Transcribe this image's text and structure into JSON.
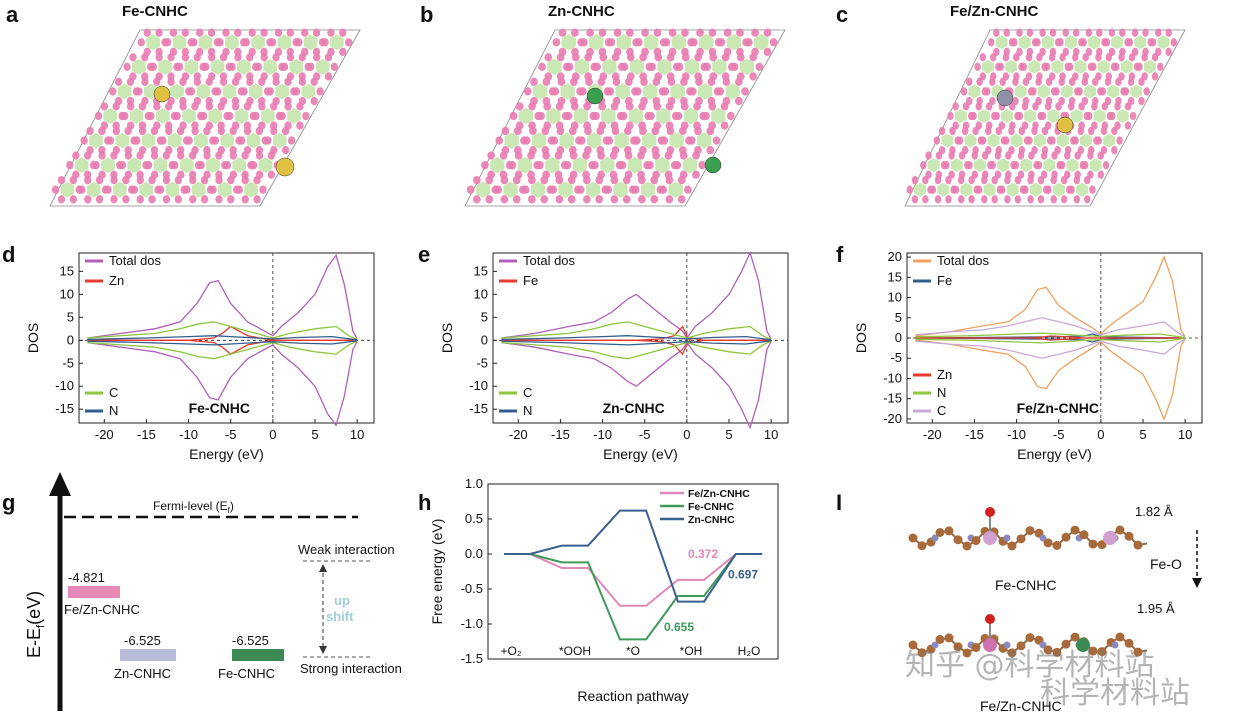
{
  "panels": {
    "a": {
      "letter": "a",
      "title": "Fe-CNHC"
    },
    "b": {
      "letter": "b",
      "title": "Zn-CNHC"
    },
    "c": {
      "letter": "c",
      "title": "Fe/Zn-CNHC"
    },
    "d": {
      "letter": "d"
    },
    "e": {
      "letter": "e"
    },
    "f": {
      "letter": "f"
    },
    "g": {
      "letter": "g"
    },
    "h": {
      "letter": "h"
    },
    "i": {
      "letter": "I"
    }
  },
  "colors": {
    "pink": "#e87cb0",
    "lightgreen": "#a8d878",
    "green": "#8dc63f",
    "blue": "#2f5f8f",
    "red": "#e33b2e",
    "purple": "#b060b8",
    "orange": "#f0a060",
    "lilac": "#c8a8d8",
    "fe_bar": "#e88ab8",
    "zn_bar": "#b8bcd8",
    "feonly_bar": "#3d8a55"
  },
  "chart_data": [
    {
      "id": "d",
      "type": "line",
      "title": "Fe-CNHC",
      "xlabel": "Energy (eV)",
      "ylabel": "DOS",
      "xlim": [
        -23,
        12
      ],
      "ylim": [
        -18,
        19
      ],
      "xticks": [
        "-20",
        "-15",
        "-10",
        "-5",
        "0",
        "5",
        "10"
      ],
      "yticks": [
        "15",
        "10",
        "5",
        "0",
        "-5",
        "-10",
        "-15"
      ],
      "legend_top": [
        "Total dos",
        "Zn"
      ],
      "legend_bottom": [
        "C",
        "N"
      ],
      "series": [
        {
          "name": "Total dos",
          "color": "#b060b8",
          "x": [
            -22,
            -18,
            -14,
            -11,
            -9,
            -7.5,
            -6.5,
            -5,
            -3,
            -1,
            0,
            1,
            3,
            5,
            6.5,
            7.5,
            8.5,
            9.5,
            10
          ],
          "y": [
            0.5,
            1.5,
            2.5,
            4,
            8,
            12.5,
            13,
            8,
            4,
            2,
            1,
            3,
            6,
            10,
            16,
            18.5,
            12,
            2,
            0.3
          ]
        },
        {
          "name": "Zn",
          "color": "#e33b2e",
          "x": [
            -22,
            -10,
            -7,
            -6,
            -5,
            -3,
            -1,
            0,
            2,
            10
          ],
          "y": [
            0,
            0,
            -0.5,
            -1.5,
            -3,
            -1,
            -0.3,
            0,
            0,
            0
          ]
        },
        {
          "name": "C",
          "color": "#8dc63f",
          "x": [
            -22,
            -18,
            -14,
            -11,
            -9,
            -7,
            -5,
            -3,
            -1,
            0,
            2,
            5,
            7.5,
            9,
            10
          ],
          "y": [
            0.5,
            1,
            1.5,
            2.5,
            3.5,
            4,
            3,
            2,
            1,
            0.5,
            1.5,
            2.5,
            3,
            1,
            0.2
          ]
        },
        {
          "name": "N",
          "color": "#2f5f8f",
          "x": [
            -22,
            -15,
            -10,
            -7,
            -5,
            -2,
            0,
            3,
            7,
            10
          ],
          "y": [
            0.2,
            0.5,
            0.8,
            1,
            0.8,
            0.5,
            0.3,
            0.6,
            0.8,
            0.1
          ]
        }
      ]
    },
    {
      "id": "e",
      "type": "line",
      "title": "Zn-CNHC",
      "xlabel": "Energy (eV)",
      "ylabel": "DOS",
      "xlim": [
        -23,
        12
      ],
      "ylim": [
        -18,
        19
      ],
      "xticks": [
        "-20",
        "-15",
        "-10",
        "-5",
        "0",
        "5",
        "10"
      ],
      "yticks": [
        "15",
        "10",
        "5",
        "0",
        "-5",
        "-10",
        "-15"
      ],
      "legend_top": [
        "Total dos",
        "Fe"
      ],
      "legend_bottom": [
        "C",
        "N"
      ],
      "series": [
        {
          "name": "Total dos",
          "color": "#b060b8",
          "x": [
            -22,
            -18,
            -14,
            -11,
            -9,
            -7,
            -6,
            -4,
            -2,
            -0.5,
            0,
            1,
            3,
            5,
            6.5,
            7.5,
            8.5,
            9.5,
            10
          ],
          "y": [
            0.5,
            1.5,
            3,
            4,
            6,
            9,
            10,
            7,
            4,
            2,
            0.5,
            3,
            6,
            10,
            15,
            19,
            13,
            2,
            0.3
          ]
        },
        {
          "name": "Fe",
          "color": "#e33b2e",
          "x": [
            -22,
            -6,
            -3,
            -1.5,
            -0.5,
            0,
            0.5,
            2,
            10
          ],
          "y": [
            0,
            0,
            -0.3,
            -1,
            -3,
            -1,
            0.5,
            0,
            0
          ]
        },
        {
          "name": "C",
          "color": "#8dc63f",
          "x": [
            -22,
            -18,
            -14,
            -11,
            -9,
            -7,
            -5,
            -3,
            -1,
            0,
            2,
            5,
            7.5,
            9,
            10
          ],
          "y": [
            0.5,
            1,
            1.5,
            2.5,
            3.5,
            4,
            3,
            2,
            1,
            0.5,
            1.5,
            2.5,
            3,
            1,
            0.2
          ]
        },
        {
          "name": "N",
          "color": "#2f5f8f",
          "x": [
            -22,
            -15,
            -10,
            -7,
            -5,
            -2,
            0,
            3,
            7,
            10
          ],
          "y": [
            0.2,
            0.5,
            0.8,
            1,
            0.8,
            0.5,
            0.3,
            0.6,
            0.8,
            0.1
          ]
        }
      ]
    },
    {
      "id": "f",
      "type": "line",
      "title": "Fe/Zn-CNHC",
      "xlabel": "Energy (eV)",
      "ylabel": "DOS",
      "xlim": [
        -23,
        12
      ],
      "ylim": [
        -21,
        21
      ],
      "xticks": [
        "-20",
        "-15",
        "-10",
        "-5",
        "0",
        "5",
        "10"
      ],
      "yticks": [
        "20",
        "15",
        "10",
        "5",
        "0",
        "-5",
        "-10",
        "-15",
        "-20"
      ],
      "legend_top": [
        "Total dos",
        "Fe"
      ],
      "legend_bottom": [
        "Zn",
        "N",
        "C"
      ],
      "series": [
        {
          "name": "Total dos",
          "color": "#f0a060",
          "x": [
            -22,
            -18,
            -14,
            -11,
            -9,
            -7.5,
            -6.5,
            -5,
            -3,
            -1,
            0,
            1,
            3,
            5,
            6.5,
            7.5,
            8.5,
            9.5,
            10
          ],
          "y": [
            0.5,
            1.5,
            3,
            4,
            7,
            12,
            12.5,
            8,
            5,
            2.5,
            1,
            3,
            6,
            9,
            15,
            20,
            14,
            2,
            0.3
          ]
        },
        {
          "name": "Fe",
          "color": "#2f5f8f",
          "x": [
            -22,
            -10,
            -5,
            -2,
            -1,
            0,
            1,
            3,
            10
          ],
          "y": [
            0,
            0.2,
            0.3,
            0.5,
            1,
            0.4,
            0.3,
            0.2,
            0
          ]
        },
        {
          "name": "Zn",
          "color": "#e33b2e",
          "x": [
            -22,
            -8,
            -6,
            -4,
            -2,
            10
          ],
          "y": [
            0,
            0,
            -0.5,
            -0.3,
            0,
            0
          ]
        },
        {
          "name": "N",
          "color": "#8dc63f",
          "x": [
            -22,
            -15,
            -10,
            -7,
            -5,
            -2,
            0,
            3,
            7,
            10
          ],
          "y": [
            0.3,
            0.6,
            1,
            1.2,
            1,
            0.6,
            0.4,
            0.7,
            1,
            0.1
          ]
        },
        {
          "name": "C",
          "color": "#c8a8d8",
          "x": [
            -22,
            -18,
            -14,
            -11,
            -9,
            -7,
            -5,
            -3,
            -1,
            0,
            2,
            5,
            7.5,
            9,
            10
          ],
          "y": [
            0.8,
            1.5,
            2,
            3,
            4,
            5,
            4,
            3,
            1.5,
            0.8,
            2,
            3,
            4,
            1.5,
            0.3
          ]
        }
      ]
    },
    {
      "id": "h",
      "type": "line",
      "xlabel": "Reaction pathway",
      "ylabel": "Free energy (eV)",
      "ylim": [
        -1.5,
        1.0
      ],
      "yticks": [
        "1.0",
        "0.5",
        "0.0",
        "-0.5",
        "-1.0",
        "-1.5"
      ],
      "categories": [
        "+O2",
        "*OOH",
        "*O",
        "*OH",
        "H2O"
      ],
      "series": [
        {
          "name": "Fe/Zn-CNHC",
          "color": "#e088b8",
          "values": [
            0.0,
            -0.2,
            -0.74,
            -0.37,
            0.0
          ]
        },
        {
          "name": "Fe-CNHC",
          "color": "#3d9a5a",
          "values": [
            0.0,
            -0.12,
            -1.22,
            -0.6,
            0.0
          ]
        },
        {
          "name": "Zn-CNHC",
          "color": "#3a6090",
          "values": [
            0.0,
            0.12,
            0.62,
            -0.68,
            0.0
          ]
        }
      ],
      "annotations": [
        {
          "text": "0.372",
          "color": "#e088b8"
        },
        {
          "text": "0.697",
          "color": "#3a6090"
        },
        {
          "text": "0.655",
          "color": "#3d9a5a"
        }
      ]
    }
  ],
  "g": {
    "axis_label": "E-E",
    "axis_sub": "f",
    "axis_unit": "(eV)",
    "fermi_label": "Fermi-level (E",
    "fermi_sub": "f",
    "fermi_close": ")",
    "bars": [
      {
        "value": "-4.821",
        "name": "Fe/Zn-CNHC"
      },
      {
        "value": "-6.525",
        "name": "Zn-CNHC"
      },
      {
        "value": "-6.525",
        "name": "Fe-CNHC"
      }
    ],
    "weak": "Weak interaction",
    "strong": "Strong interaction",
    "up": "up",
    "shift": "shift"
  },
  "i": {
    "top_label": "Fe-CNHC",
    "bottom_label": "Fe/Zn-CNHC",
    "dist1": "1.82 Å",
    "dist2": "1.95 Å",
    "bond": "Fe-O"
  },
  "watermark": {
    "line1": "知乎 @科学材料站",
    "line2": "科学材料站"
  }
}
